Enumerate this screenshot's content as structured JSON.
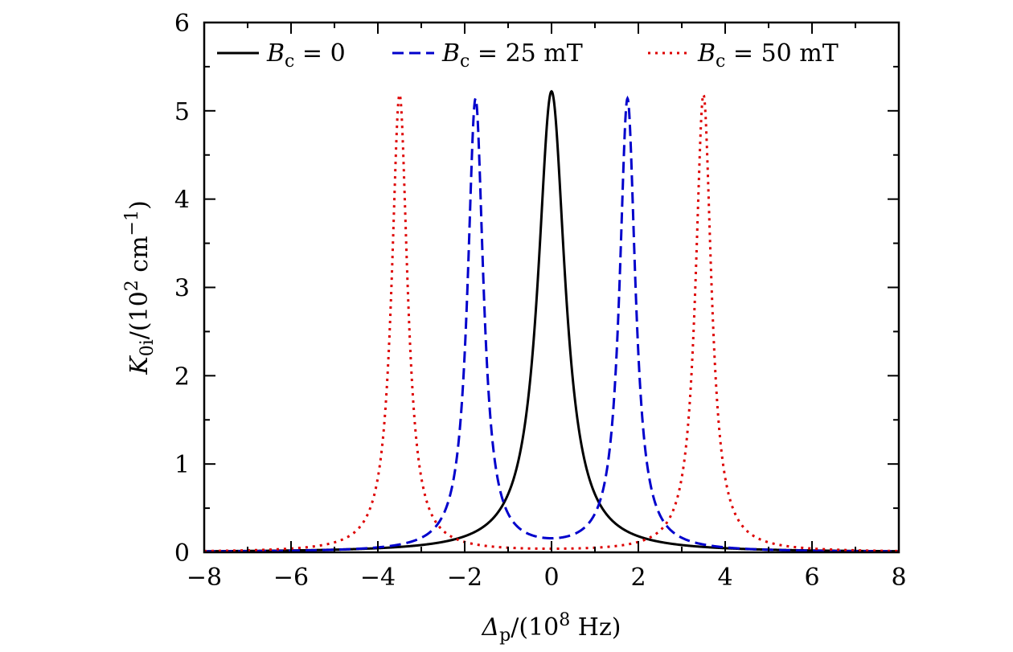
{
  "chart_data": {
    "type": "line",
    "xlabel": {
      "main": "Δ",
      "sub": "p",
      "rest": "/(10",
      "sup": "8",
      "tail": " Hz)"
    },
    "ylabel": {
      "main": "K",
      "sub": "0i",
      "rest": "/(10",
      "sup": "2",
      "unit": " cm",
      "sup2": "−1",
      "tail": ")"
    },
    "xlim": [
      -8,
      8
    ],
    "ylim": [
      0,
      6
    ],
    "xticks": [
      -8,
      -6,
      -4,
      -2,
      0,
      2,
      4,
      6,
      8
    ],
    "xtick_labels": [
      "−8",
      "−6",
      "−4",
      "−2",
      "0",
      "2",
      "4",
      "6",
      "8"
    ],
    "yticks": [
      0,
      1,
      2,
      3,
      4,
      5,
      6
    ],
    "ytick_labels": [
      "0",
      "1",
      "2",
      "3",
      "4",
      "5",
      "6"
    ],
    "legend_position": "top",
    "grid": false,
    "series": [
      {
        "name": "B_c = 0",
        "legend": {
          "var": "B",
          "sub": "c",
          "eq": " = 0"
        },
        "color": "#000000",
        "style": "solid",
        "center": [
          0.0
        ],
        "peak": 5.22,
        "hwhm": 0.38
      },
      {
        "name": "B_c = 25 mT",
        "legend": {
          "var": "B",
          "sub": "c",
          "eq": " = 25 mT"
        },
        "color": "#0000cc",
        "style": "dashed",
        "center": [
          -1.75,
          1.75
        ],
        "peak": 5.12,
        "hwhm": 0.22
      },
      {
        "name": "B_c = 50 mT",
        "legend": {
          "var": "B",
          "sub": "c",
          "eq": " = 50 mT"
        },
        "color": "#dd0000",
        "style": "dotted",
        "center": [
          -3.5,
          3.5
        ],
        "peak": 5.18,
        "hwhm": 0.22
      }
    ]
  }
}
